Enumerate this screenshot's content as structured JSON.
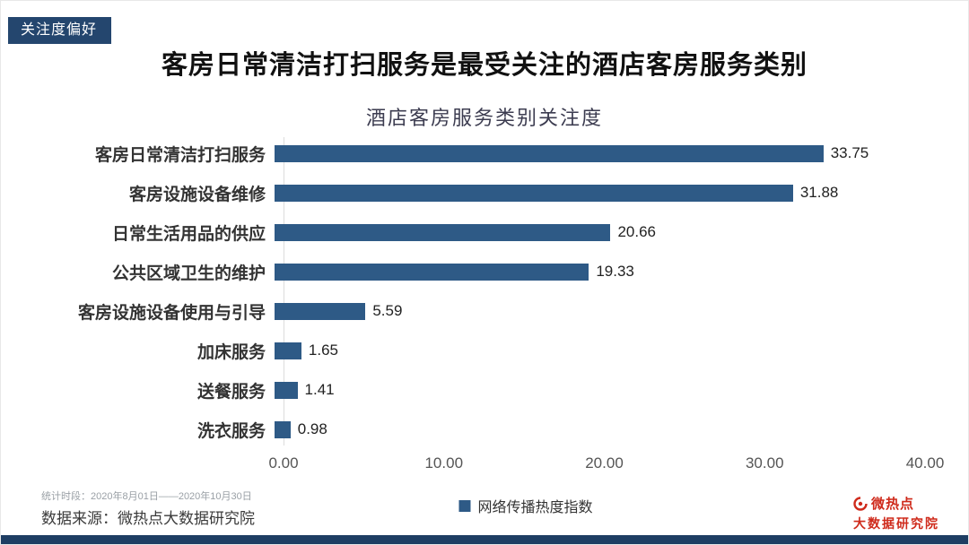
{
  "badge": {
    "label": "关注度偏好"
  },
  "header": {
    "title": "客房日常清洁打扫服务是最受关注的酒店客房服务类别"
  },
  "chart_data": {
    "type": "bar",
    "orientation": "horizontal",
    "title": "酒店客房服务类别关注度",
    "categories": [
      "客房日常清洁打扫服务",
      "客房设施设备维修",
      "日常生活用品的供应",
      "公共区域卫生的维护",
      "客房设施设备使用与引导",
      "加床服务",
      "送餐服务",
      "洗衣服务"
    ],
    "values": [
      33.75,
      31.88,
      20.66,
      19.33,
      5.59,
      1.65,
      1.41,
      0.98
    ],
    "xlim": [
      0,
      40
    ],
    "x_ticks": [
      "0.00",
      "10.00",
      "20.00",
      "30.00",
      "40.00"
    ],
    "legend": [
      "网络传播热度指数"
    ],
    "legend_position": "bottom",
    "grid": false,
    "bar_color": "#2e5a86"
  },
  "footer": {
    "period": "统计时段：2020年8月01日——2020年10月30日",
    "source": "数据来源：微热点大数据研究院",
    "logo": {
      "line1": "微热点",
      "line2": "大数据研究院"
    }
  },
  "colors": {
    "bar": "#2e5a86",
    "badge_background": "#24466e",
    "bottom_bar": "#1e3e63",
    "logo_red": "#cf2a1b"
  }
}
